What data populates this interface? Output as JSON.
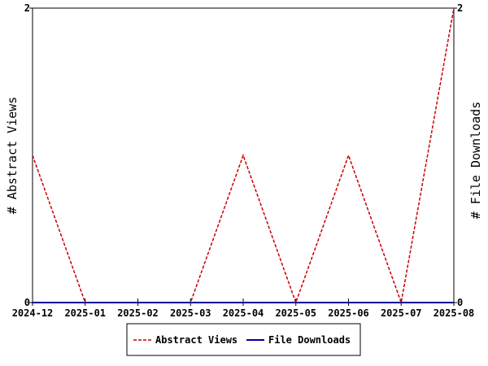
{
  "chart_data": {
    "type": "line",
    "x": [
      "2024-12",
      "2025-01",
      "2025-02",
      "2025-03",
      "2025-04",
      "2025-05",
      "2025-06",
      "2025-07",
      "2025-08"
    ],
    "series": [
      {
        "name": "Abstract Views",
        "values": [
          1,
          0,
          0,
          0,
          1,
          0,
          1,
          0,
          2
        ],
        "color": "#cc0000",
        "style": "dashed",
        "axis": "left"
      },
      {
        "name": "File Downloads",
        "values": [
          0,
          0,
          0,
          0,
          0,
          0,
          0,
          0,
          0
        ],
        "color": "#000099",
        "style": "solid",
        "axis": "right"
      }
    ],
    "ylabel": "# Abstract Views",
    "y2label": "# File Downloads",
    "ylim": [
      0,
      2
    ],
    "y2lim": [
      0,
      2
    ],
    "yticks": [
      "0",
      "2"
    ],
    "y2ticks": [
      "0",
      "2"
    ],
    "grid": false,
    "legend_position": "bottom-center"
  }
}
